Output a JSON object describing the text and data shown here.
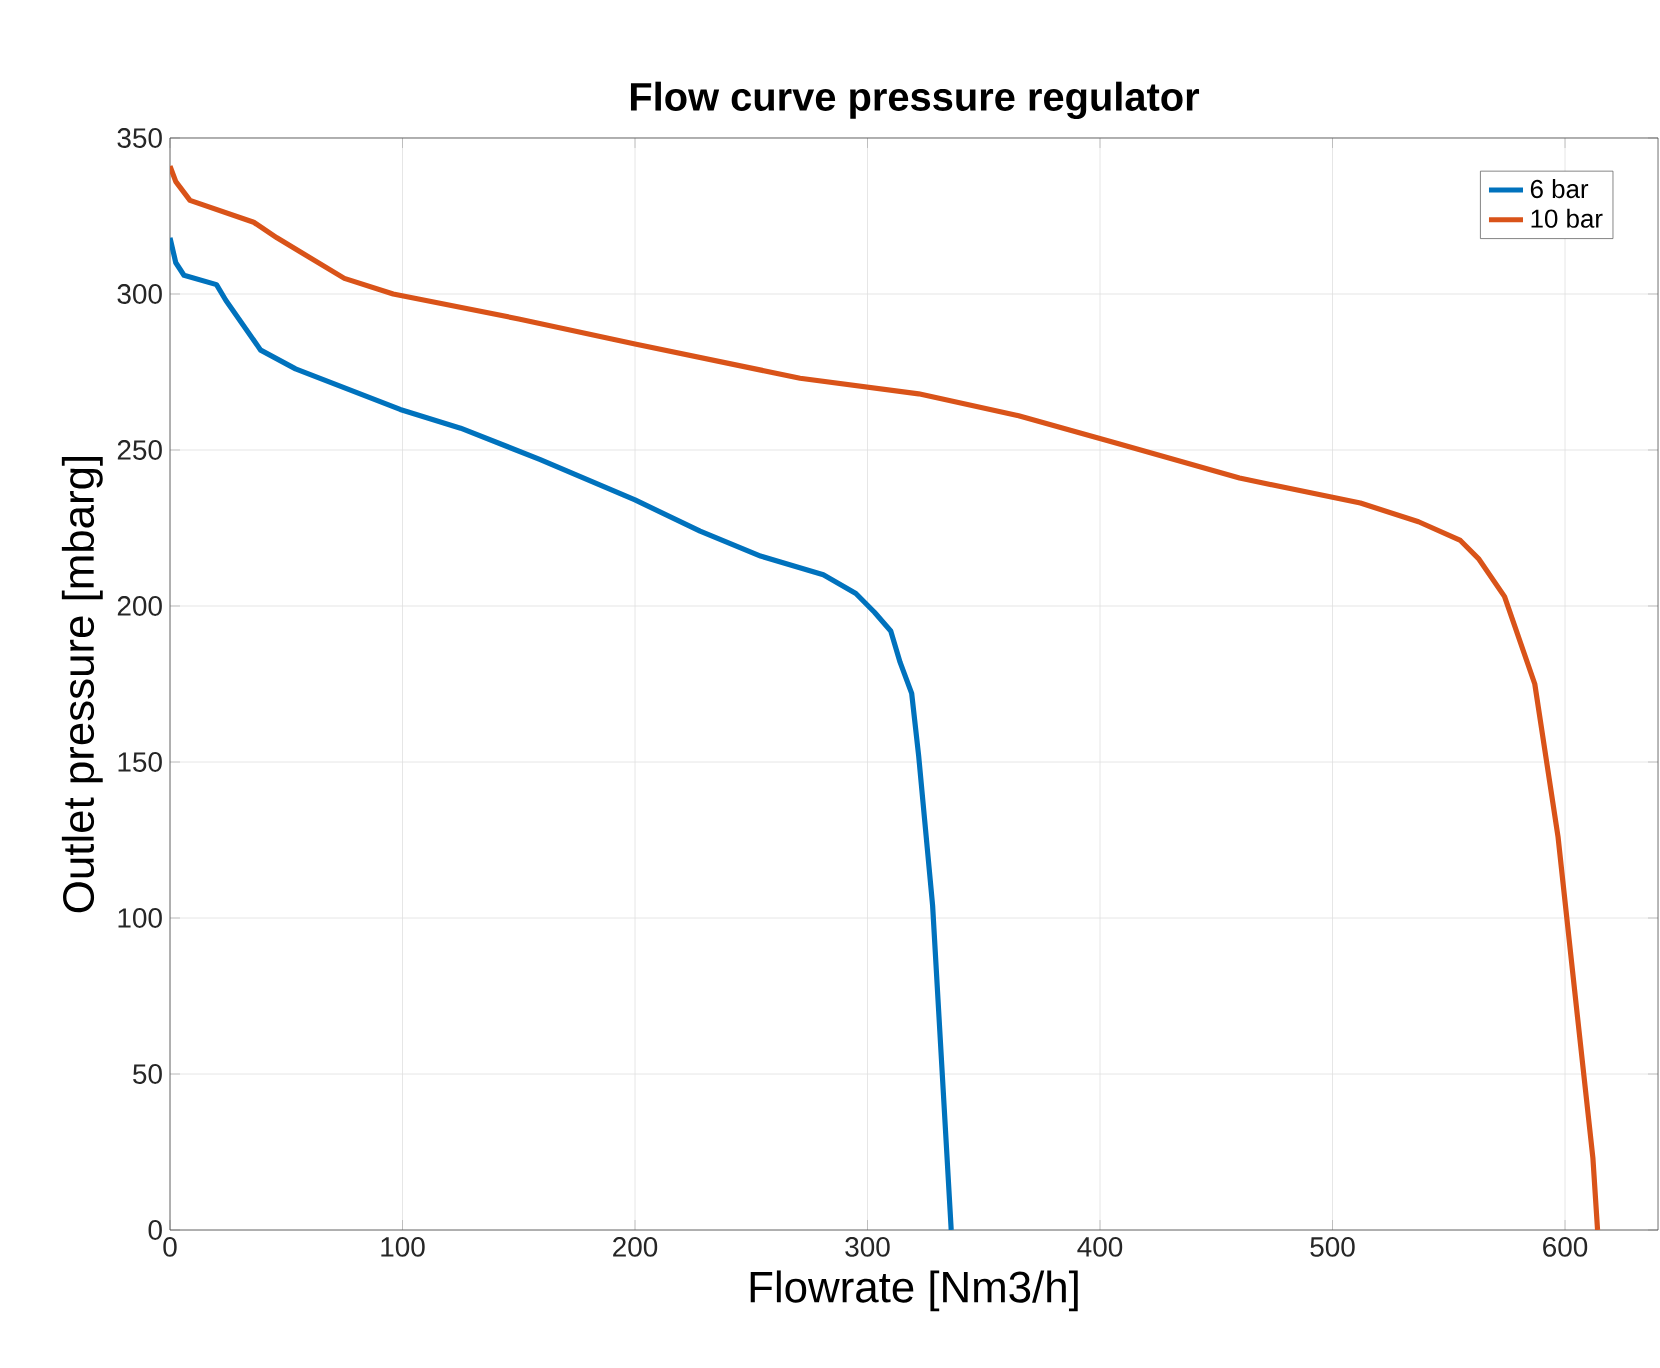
{
  "chart_data": {
    "type": "line",
    "title": "Flow curve pressure regulator",
    "xlabel": "Flowrate [Nm3/h]",
    "ylabel": "Outlet pressure [mbarg]",
    "xlim": [
      0,
      640
    ],
    "ylim": [
      0,
      350
    ],
    "xticks": [
      0,
      100,
      200,
      300,
      400,
      500,
      600
    ],
    "yticks": [
      0,
      50,
      100,
      150,
      200,
      250,
      300,
      350
    ],
    "grid": true,
    "legend": "top right",
    "marker": "none",
    "line_style": "solid",
    "series": [
      {
        "name": "6 bar",
        "color": "#0072bd",
        "x": [
          0,
          2.5,
          6,
          20,
          24,
          39,
          54,
          99,
          125,
          159,
          200,
          228,
          254,
          281,
          295,
          303,
          310,
          314,
          319,
          322,
          328,
          336
        ],
        "values": [
          318,
          310,
          306,
          303,
          298,
          282,
          276,
          263,
          257,
          247,
          234,
          224,
          216,
          210,
          204,
          198,
          192,
          182,
          172,
          152,
          104,
          0
        ]
      },
      {
        "name": "10 bar",
        "color": "#d95319",
        "x": [
          0,
          2.5,
          8.6,
          36,
          46,
          75,
          96,
          150,
          200,
          271,
          322,
          365,
          408,
          460,
          512,
          537,
          555,
          563,
          574,
          587,
          597,
          606,
          612,
          614
        ],
        "values": [
          341,
          336,
          330,
          323,
          318,
          305,
          300,
          292,
          284,
          273,
          268,
          261,
          252,
          241,
          233,
          227,
          221,
          215,
          203,
          175,
          126,
          64,
          23,
          0
        ]
      }
    ]
  }
}
